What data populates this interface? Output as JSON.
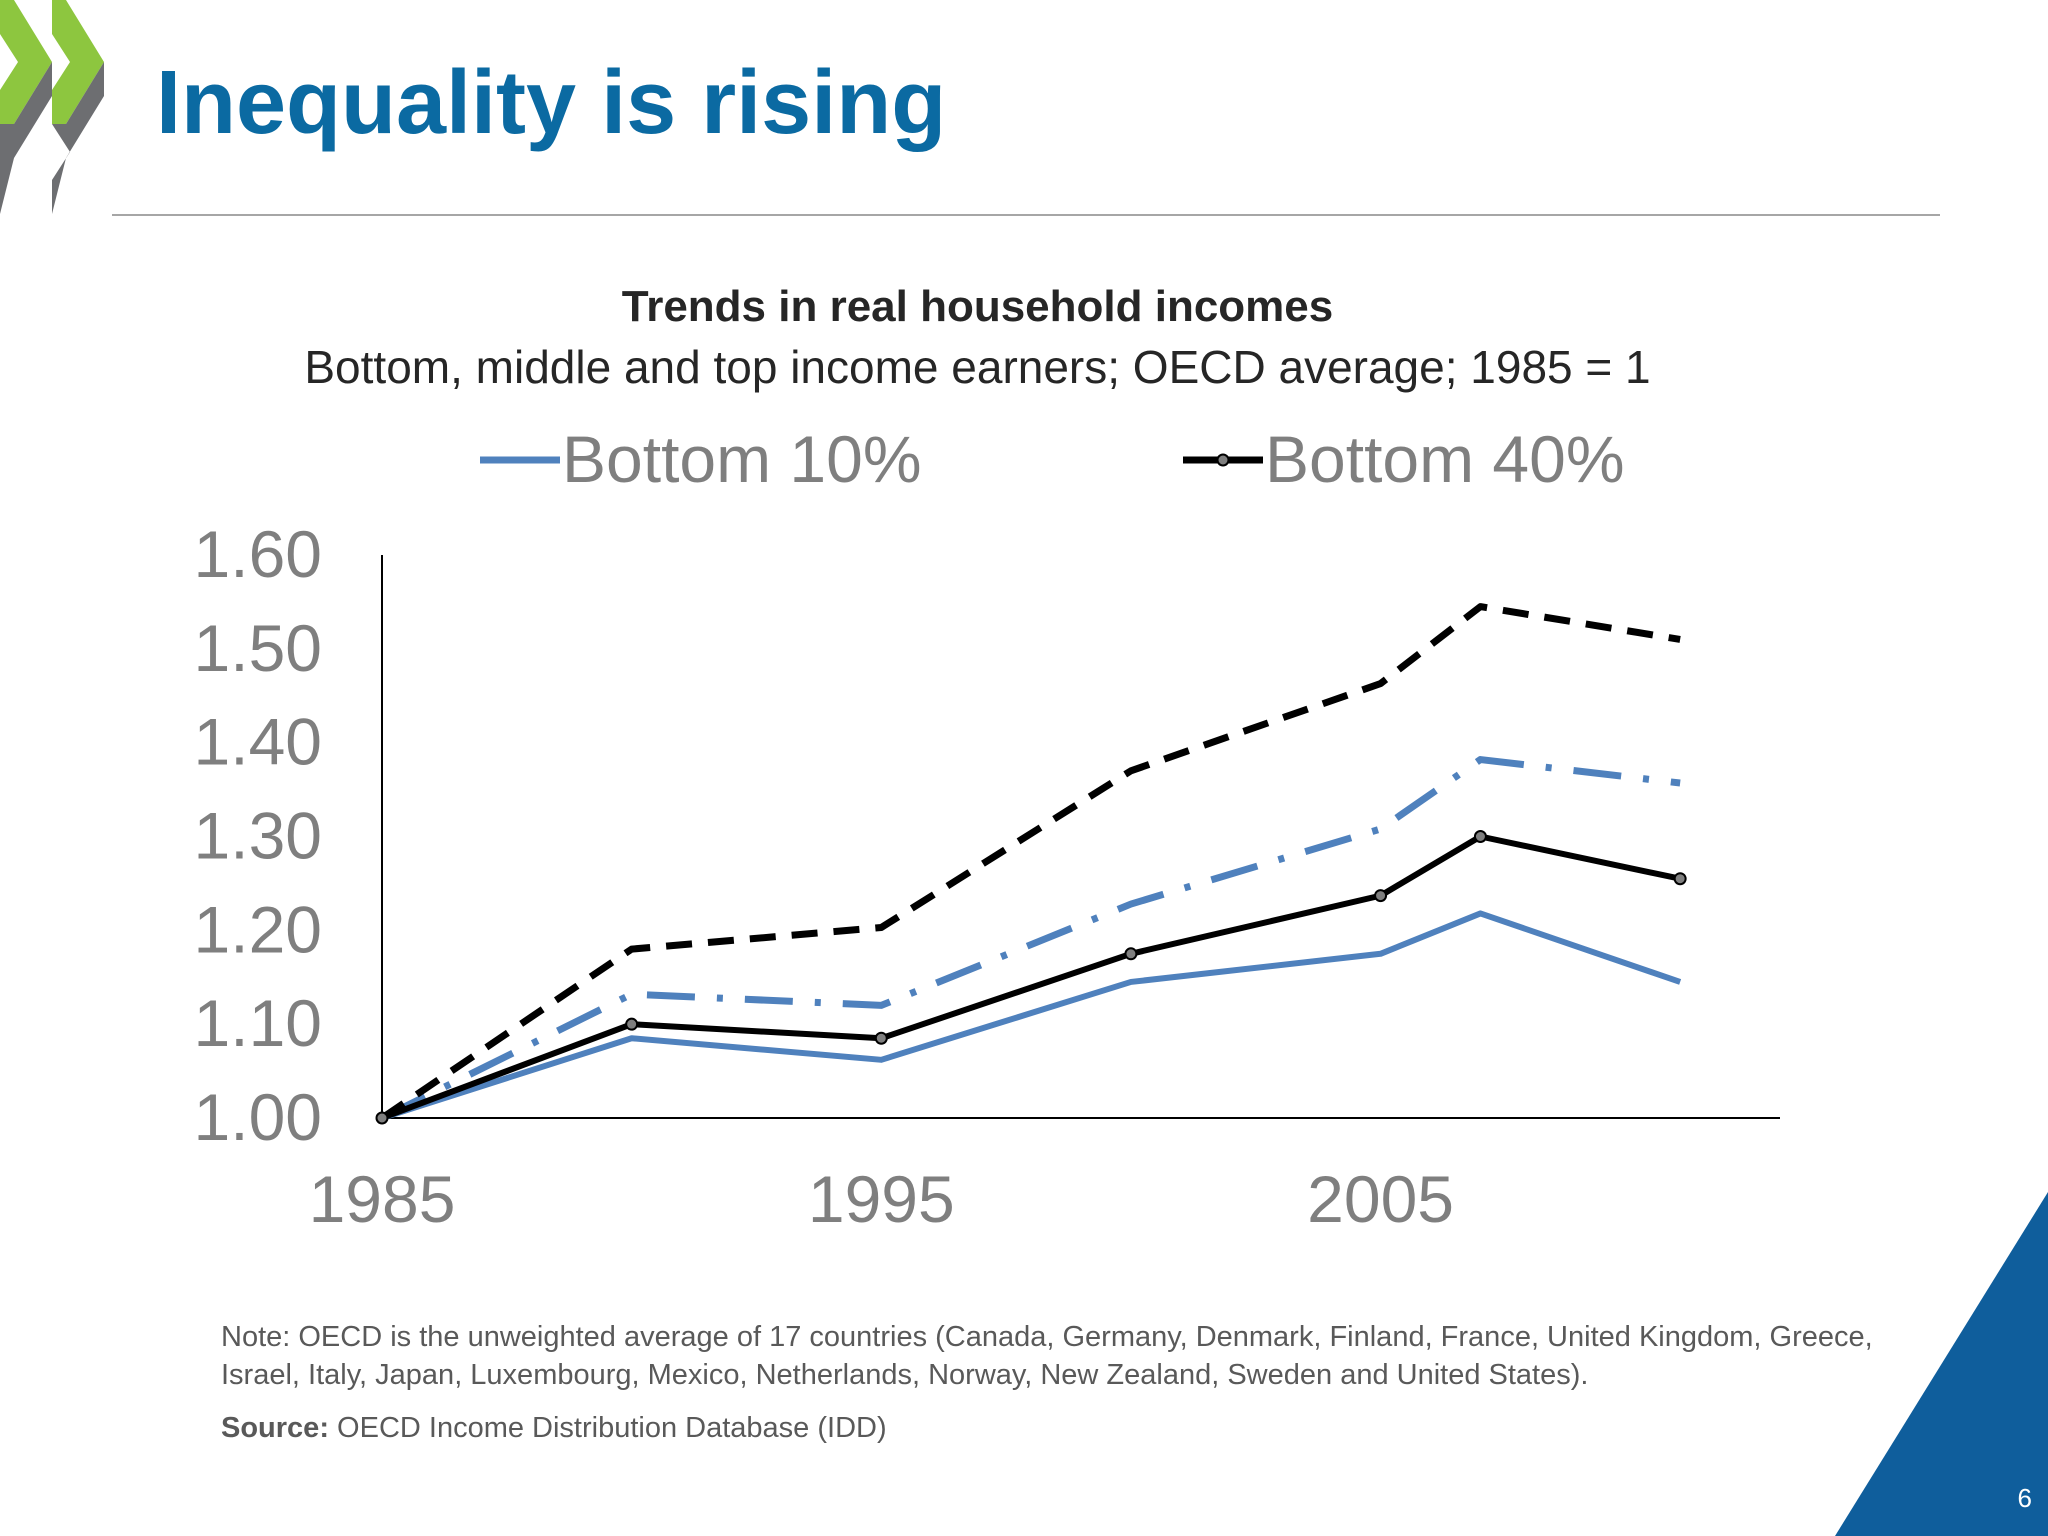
{
  "slide": {
    "title": "Inequality is rising",
    "page_number": "6",
    "colors": {
      "title": "#0b6aa2",
      "logo_green": "#8dc63f",
      "logo_gray": "#6d6e71",
      "corner_blue": "#0f5e9c",
      "rule": "#a6a6a6"
    }
  },
  "notes": {
    "note": "Note: OECD is the unweighted average of 17 countries (Canada, Germany, Denmark, Finland, France, United Kingdom, Greece, Israel, Italy, Japan, Luxembourg, Mexico, Netherlands, Norway, New Zealand, Sweden and United States).",
    "source_label": "Source:",
    "source_text": " OECD Income Distribution Database (IDD)"
  },
  "chart_data": {
    "type": "line",
    "title": "Trends in real household incomes",
    "subtitle": "Bottom, middle and top income earners; OECD average; 1985 = 1",
    "x": [
      1985,
      1990,
      1995,
      2000,
      2005,
      2007,
      2011
    ],
    "x_ticks": [
      "1985",
      "1995",
      "2005"
    ],
    "x_tick_values": [
      1985,
      1995,
      2005
    ],
    "xlim": [
      1985,
      2013
    ],
    "ylim": [
      1.0,
      1.6
    ],
    "y_ticks": [
      "1.00",
      "1.10",
      "1.20",
      "1.30",
      "1.40",
      "1.50",
      "1.60"
    ],
    "grid": false,
    "legend_position": "top",
    "series": [
      {
        "name": "Bottom 10%",
        "values": [
          1.0,
          1.085,
          1.062,
          1.145,
          1.175,
          1.218,
          1.145
        ],
        "color": "#4f81bd",
        "line_style": "solid",
        "markers": false,
        "in_legend": true
      },
      {
        "name": "Bottom 40%",
        "values": [
          1.0,
          1.1,
          1.085,
          1.175,
          1.237,
          1.3,
          1.255
        ],
        "color": "#000000",
        "line_style": "solid",
        "markers": true,
        "in_legend": true
      },
      {
        "values": [
          1.0,
          1.132,
          1.12,
          1.228,
          1.308,
          1.382,
          1.357
        ],
        "color": "#4f81bd",
        "line_style": "dashdot",
        "markers": false,
        "in_legend": false
      },
      {
        "values": [
          1.0,
          1.18,
          1.203,
          1.37,
          1.463,
          1.545,
          1.51
        ],
        "color": "#000000",
        "line_style": "dashed",
        "markers": false,
        "in_legend": false
      }
    ]
  }
}
